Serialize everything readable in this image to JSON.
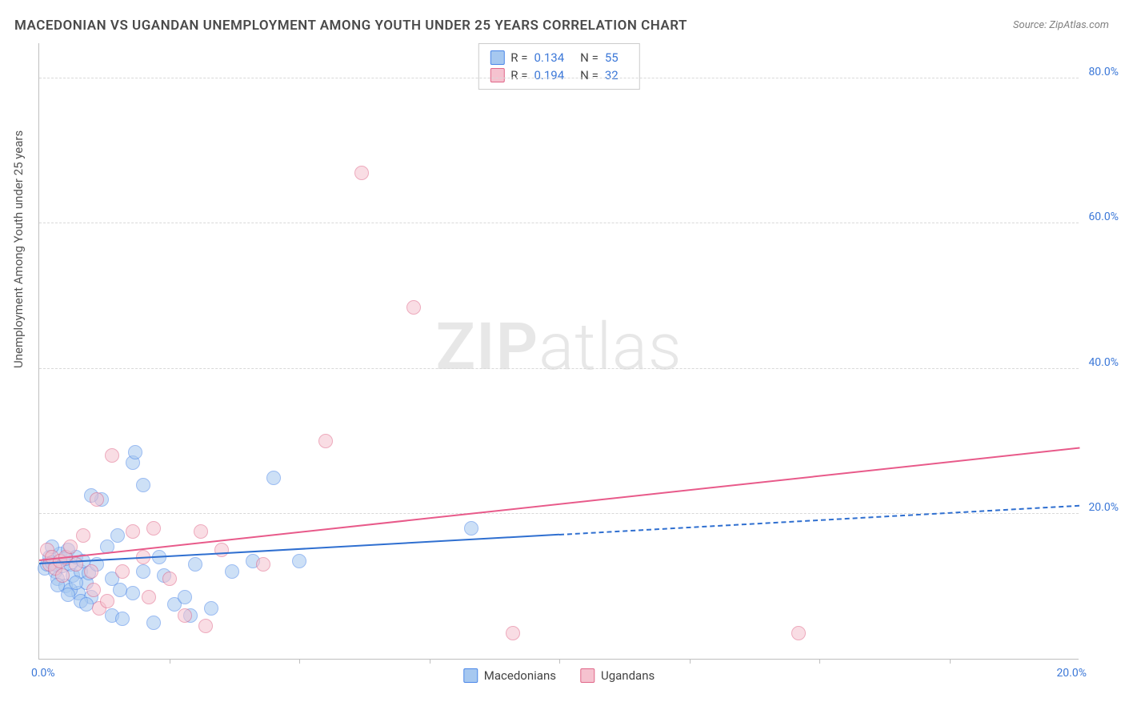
{
  "title": "MACEDONIAN VS UGANDAN UNEMPLOYMENT AMONG YOUTH UNDER 25 YEARS CORRELATION CHART",
  "source": "Source: ZipAtlas.com",
  "ylabel": "Unemployment Among Youth under 25 years",
  "watermark_part1": "ZIP",
  "watermark_part2": "atlas",
  "chart": {
    "type": "scatter",
    "xlim": [
      0,
      20
    ],
    "ylim": [
      0,
      85
    ],
    "xlim_labels": [
      "0.0%",
      "20.0%"
    ],
    "x_ticks": [
      2.5,
      5.0,
      7.5,
      10.0,
      12.5,
      15.0,
      17.5
    ],
    "y_gridlines": [
      20,
      40,
      60,
      80
    ],
    "y_labels": [
      "20.0%",
      "40.0%",
      "60.0%",
      "80.0%"
    ],
    "grid_color": "#d9d9d9",
    "axis_color": "#bfbfbf",
    "tick_label_color": "#3c78d8",
    "marker_radius": 9,
    "marker_opacity": 0.55,
    "series": [
      {
        "name": "Macedonians",
        "fill": "#a6c8f0",
        "stroke": "#4a86e8",
        "trend_color": "#2f6fd0",
        "R": "0.134",
        "N": "55",
        "trend": {
          "x1": 0,
          "y1": 13.0,
          "x2_solid": 10.0,
          "y2_solid": 17.0,
          "x2_dash": 20.0,
          "y2_dash": 21.0
        },
        "points": [
          [
            0.1,
            12.5
          ],
          [
            0.15,
            13.0
          ],
          [
            0.2,
            14.0
          ],
          [
            0.25,
            13.3
          ],
          [
            0.3,
            12.0
          ],
          [
            0.35,
            11.0
          ],
          [
            0.4,
            14.5
          ],
          [
            0.45,
            12.8
          ],
          [
            0.5,
            10.0
          ],
          [
            0.55,
            15.0
          ],
          [
            0.6,
            13.0
          ],
          [
            0.65,
            11.5
          ],
          [
            0.7,
            14.0
          ],
          [
            0.75,
            9.0
          ],
          [
            0.8,
            12.0
          ],
          [
            0.85,
            13.5
          ],
          [
            0.9,
            10.5
          ],
          [
            0.95,
            11.8
          ],
          [
            1.0,
            8.5
          ],
          [
            1.1,
            13.0
          ],
          [
            1.2,
            22.0
          ],
          [
            1.3,
            15.5
          ],
          [
            1.4,
            6.0
          ],
          [
            1.5,
            17.0
          ],
          [
            1.6,
            5.5
          ],
          [
            1.8,
            27.0
          ],
          [
            1.8,
            9.0
          ],
          [
            2.0,
            24.0
          ],
          [
            2.0,
            12.0
          ],
          [
            2.2,
            5.0
          ],
          [
            2.3,
            14.0
          ],
          [
            2.6,
            7.5
          ],
          [
            2.8,
            8.5
          ],
          [
            2.9,
            6.0
          ],
          [
            3.0,
            13.0
          ],
          [
            3.3,
            7.0
          ],
          [
            3.7,
            12.0
          ],
          [
            4.1,
            13.5
          ],
          [
            4.5,
            25.0
          ],
          [
            5.0,
            13.5
          ],
          [
            1.85,
            28.5
          ],
          [
            1.0,
            22.5
          ],
          [
            0.6,
            9.5
          ],
          [
            0.8,
            8.0
          ],
          [
            1.4,
            11.0
          ],
          [
            0.9,
            7.5
          ],
          [
            0.5,
            13.8
          ],
          [
            0.35,
            10.2
          ],
          [
            0.25,
            15.5
          ],
          [
            0.3,
            13.0
          ],
          [
            8.3,
            18.0
          ],
          [
            0.55,
            8.8
          ],
          [
            0.7,
            10.5
          ],
          [
            2.4,
            11.5
          ],
          [
            1.55,
            9.5
          ]
        ]
      },
      {
        "name": "Ugandans",
        "fill": "#f5c2cf",
        "stroke": "#e06688",
        "trend_color": "#e85a8a",
        "R": "0.194",
        "N": "32",
        "trend": {
          "x1": 0,
          "y1": 13.5,
          "x2_solid": 20.0,
          "y2_solid": 29.0
        },
        "points": [
          [
            0.15,
            15.0
          ],
          [
            0.2,
            13.0
          ],
          [
            0.25,
            14.0
          ],
          [
            0.3,
            12.5
          ],
          [
            0.4,
            13.5
          ],
          [
            0.5,
            14.0
          ],
          [
            0.6,
            15.5
          ],
          [
            0.7,
            13.0
          ],
          [
            0.85,
            17.0
          ],
          [
            1.0,
            12.0
          ],
          [
            1.1,
            22.0
          ],
          [
            1.15,
            7.0
          ],
          [
            1.3,
            8.0
          ],
          [
            1.4,
            28.0
          ],
          [
            1.6,
            12.0
          ],
          [
            1.8,
            17.5
          ],
          [
            2.0,
            14.0
          ],
          [
            2.1,
            8.5
          ],
          [
            2.2,
            18.0
          ],
          [
            2.5,
            11.0
          ],
          [
            2.8,
            6.0
          ],
          [
            3.1,
            17.5
          ],
          [
            3.2,
            4.5
          ],
          [
            3.5,
            15.0
          ],
          [
            4.3,
            13.0
          ],
          [
            5.5,
            30.0
          ],
          [
            6.2,
            67.0
          ],
          [
            7.2,
            48.5
          ],
          [
            9.1,
            3.5
          ],
          [
            14.6,
            3.5
          ],
          [
            1.05,
            9.5
          ],
          [
            0.45,
            11.5
          ]
        ]
      }
    ]
  },
  "bottom_legend": [
    "Macedonians",
    "Ugandans"
  ],
  "stats_labels": {
    "R": "R =",
    "N": "N ="
  }
}
